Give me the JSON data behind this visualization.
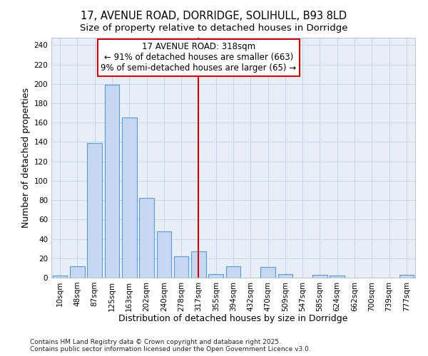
{
  "title_line1": "17, AVENUE ROAD, DORRIDGE, SOLIHULL, B93 8LD",
  "title_line2": "Size of property relative to detached houses in Dorridge",
  "xlabel": "Distribution of detached houses by size in Dorridge",
  "ylabel": "Number of detached properties",
  "bar_labels": [
    "10sqm",
    "48sqm",
    "87sqm",
    "125sqm",
    "163sqm",
    "202sqm",
    "240sqm",
    "278sqm",
    "317sqm",
    "355sqm",
    "394sqm",
    "432sqm",
    "470sqm",
    "509sqm",
    "547sqm",
    "585sqm",
    "624sqm",
    "662sqm",
    "700sqm",
    "739sqm",
    "777sqm"
  ],
  "bar_values": [
    2,
    12,
    139,
    199,
    165,
    82,
    48,
    22,
    27,
    4,
    12,
    0,
    11,
    4,
    0,
    3,
    2,
    0,
    0,
    0,
    3
  ],
  "bar_color": "#c5d8ef",
  "bar_edgecolor": "#5b9bd5",
  "bar_linewidth": 0.8,
  "vline_x": 8,
  "vline_color": "#cc0000",
  "annotation_title": "17 AVENUE ROAD: 318sqm",
  "annotation_line1": "← 91% of detached houses are smaller (663)",
  "annotation_line2": "9% of semi-detached houses are larger (65) →",
  "annotation_box_color": "#cc0000",
  "annotation_bg_color": "#ffffff",
  "ylim": [
    0,
    248
  ],
  "yticks": [
    0,
    20,
    40,
    60,
    80,
    100,
    120,
    140,
    160,
    180,
    200,
    220,
    240
  ],
  "grid_color": "#c8d4e8",
  "background_color": "#e8eef8",
  "footnote": "Contains HM Land Registry data © Crown copyright and database right 2025.\nContains public sector information licensed under the Open Government Licence v3.0.",
  "title_fontsize": 10.5,
  "subtitle_fontsize": 9.5,
  "axis_label_fontsize": 9,
  "tick_fontsize": 7.5,
  "annotation_fontsize": 8.5,
  "footnote_fontsize": 6.5
}
